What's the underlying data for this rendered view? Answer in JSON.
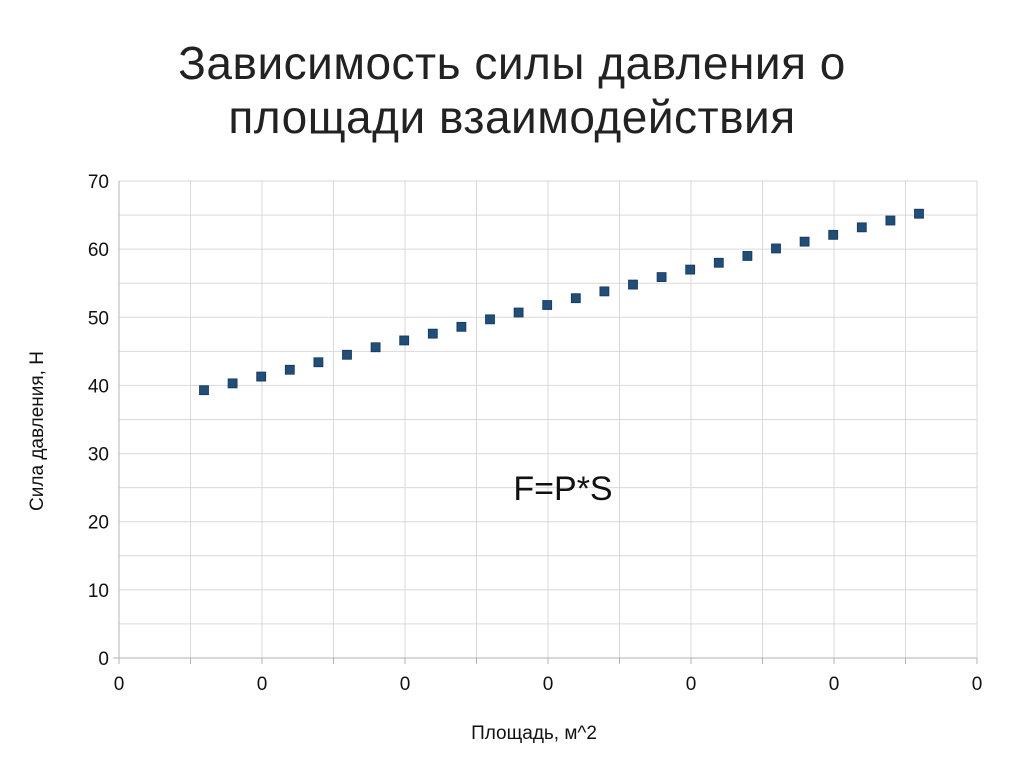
{
  "slide": {
    "title_line1": "Зависимость силы давления о",
    "title_line2": "площади взаимодействия"
  },
  "chart_data": {
    "type": "scatter",
    "title": "",
    "xlabel": "Площадь, м^2",
    "ylabel": "Сила давления, Н",
    "ylim": [
      0,
      70
    ],
    "y_ticks": [
      "0",
      "10",
      "20",
      "30",
      "40",
      "50",
      "60",
      "70"
    ],
    "x_tick_labels": [
      "0",
      "0",
      "0",
      "0",
      "0",
      "0",
      "0"
    ],
    "grid": true,
    "annotation": "F=P*S",
    "colors": {
      "marker": "#1f4e79",
      "grid": "#d9d9d9",
      "axis": "#b3b3b3"
    },
    "series": [
      {
        "values": [
          39.3,
          40.3,
          41.3,
          42.3,
          43.4,
          44.5,
          45.6,
          46.6,
          47.6,
          48.6,
          49.7,
          50.7,
          51.8,
          52.8,
          53.8,
          54.8,
          55.9,
          57.0,
          58.0,
          59.0,
          60.1,
          61.1,
          62.1,
          63.2,
          64.2,
          65.2
        ]
      }
    ]
  }
}
